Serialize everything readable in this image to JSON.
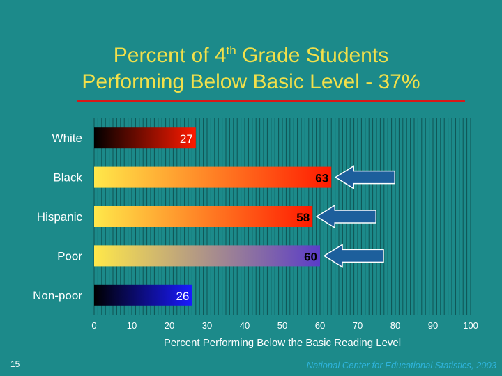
{
  "slide": {
    "title_line1_pre": "Percent of 4",
    "title_sup": "th",
    "title_line1_post": " Grade Students",
    "title_line2": "Performing Below Basic Level - 37%",
    "slide_number": "15",
    "source": "National Center for Educational Statistics, 2003"
  },
  "colors": {
    "background": "#1c8a8a",
    "title": "#f2e04a",
    "rule": "#d81818",
    "arrow": "#1d5f9c"
  },
  "chart_data": {
    "type": "bar",
    "orientation": "horizontal",
    "xlabel": "Percent Performing Below the Basic Reading Level",
    "xlim": [
      0,
      100
    ],
    "xticks": [
      0,
      10,
      20,
      30,
      40,
      50,
      60,
      70,
      80,
      90,
      100
    ],
    "categories": [
      "White",
      "Black",
      "Hispanic",
      "Poor",
      "Non-poor"
    ],
    "values": [
      27,
      63,
      58,
      60,
      26
    ],
    "highlighted": [
      false,
      true,
      true,
      true,
      false
    ],
    "bar_gradients": [
      [
        "#000000",
        "#ff1a00"
      ],
      [
        "#ffe84a",
        "#ff1a00"
      ],
      [
        "#ffe84a",
        "#ff1a00"
      ],
      [
        "#ffe84a",
        "#5a3cc8"
      ],
      [
        "#000000",
        "#1a1aff"
      ]
    ],
    "grid": "vertical"
  }
}
